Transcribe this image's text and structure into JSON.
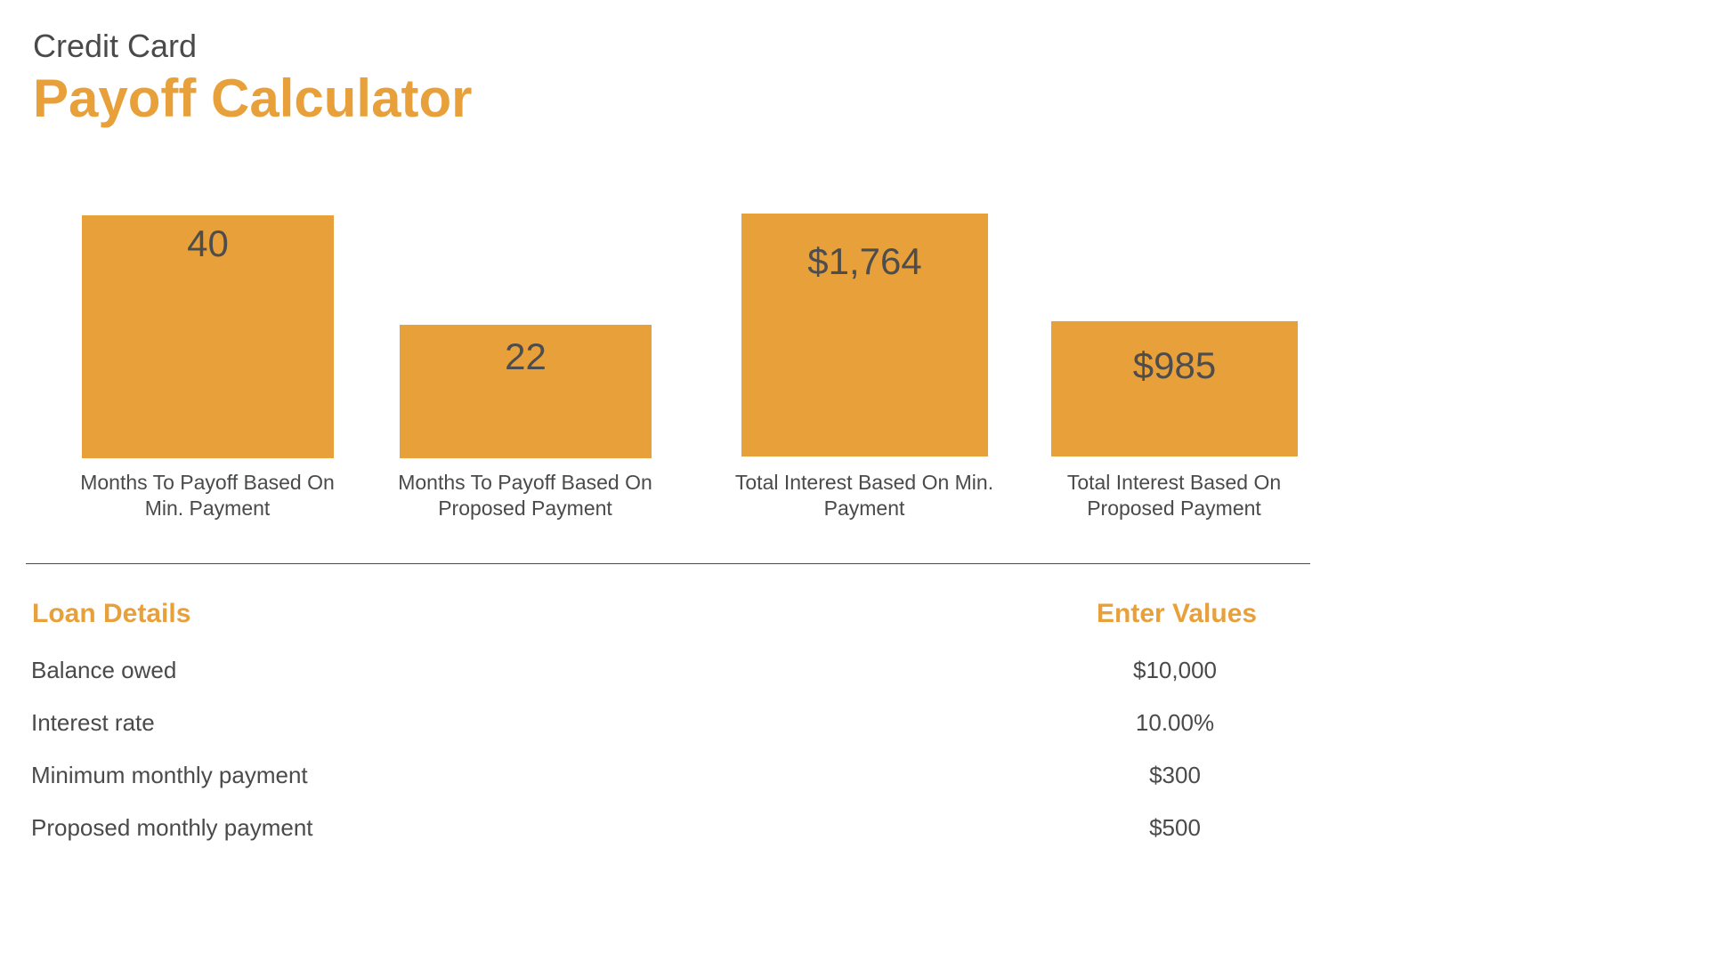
{
  "header": {
    "subtitle": "Credit Card",
    "title": "Payoff Calculator"
  },
  "chart_data": {
    "type": "bar",
    "categories": [
      "Months To Payoff Based On Min. Payment",
      "Months To Payoff Based On Proposed Payment",
      "Total Interest Based On Min. Payment",
      "Total Interest Based On Proposed Payment"
    ],
    "values": [
      40,
      22,
      1764,
      985
    ],
    "value_labels": [
      "40",
      "22",
      "$1,764",
      "$985"
    ],
    "groups": [
      {
        "unit": "months",
        "indices": [
          0,
          1
        ]
      },
      {
        "unit": "USD",
        "indices": [
          2,
          3
        ]
      }
    ],
    "bar_color": "#e8a03b"
  },
  "loan_details": {
    "heading": "Loan Details",
    "values_heading": "Enter Values",
    "rows": [
      {
        "label": "Balance owed",
        "value": "$10,000"
      },
      {
        "label": "Interest rate",
        "value": "10.00%"
      },
      {
        "label": "Minimum monthly payment",
        "value": "$300"
      },
      {
        "label": "Proposed monthly payment",
        "value": "$500"
      }
    ]
  },
  "colors": {
    "accent": "#e8a03b",
    "text": "#4a4a4a"
  }
}
